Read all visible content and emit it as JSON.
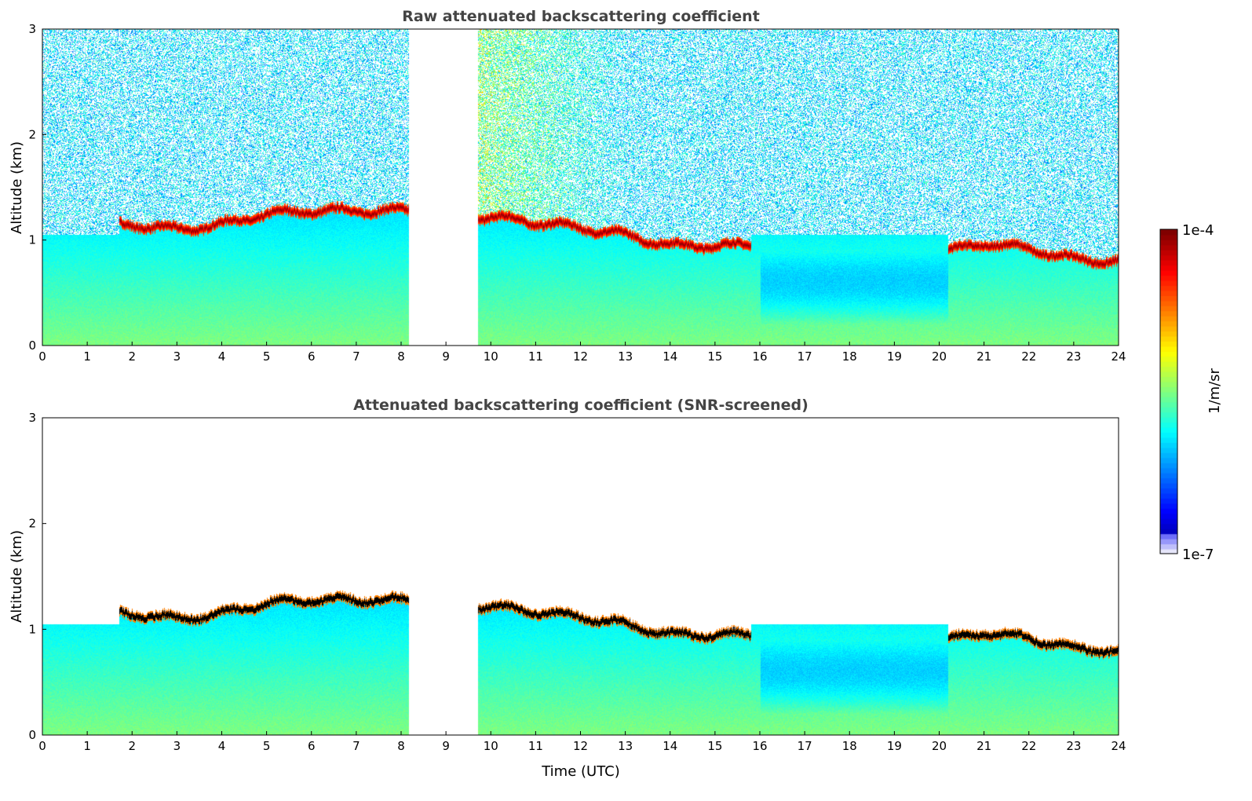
{
  "chart_data": [
    {
      "type": "heatmap",
      "title": "Raw attenuated backscattering coefficient",
      "xlabel": "",
      "ylabel": "Altitude (km)",
      "xlim": [
        0,
        24
      ],
      "ylim": [
        0,
        3
      ],
      "xticks": [
        "0",
        "1",
        "2",
        "3",
        "4",
        "5",
        "6",
        "7",
        "8",
        "9",
        "10",
        "11",
        "12",
        "13",
        "14",
        "15",
        "16",
        "17",
        "18",
        "19",
        "20",
        "21",
        "22",
        "23",
        "24"
      ],
      "yticks": [
        "0",
        "1",
        "2",
        "3"
      ],
      "data_gap_hours": [
        8.17,
        9.7
      ],
      "noise_above_boundary_layer": true
    },
    {
      "type": "heatmap",
      "title": "Attenuated backscattering coefficient (SNR-screened)",
      "xlabel": "Time (UTC)",
      "ylabel": "Altitude (km)",
      "xlim": [
        0,
        24
      ],
      "ylim": [
        0,
        3
      ],
      "xticks": [
        "0",
        "1",
        "2",
        "3",
        "4",
        "5",
        "6",
        "7",
        "8",
        "9",
        "10",
        "11",
        "12",
        "13",
        "14",
        "15",
        "16",
        "17",
        "18",
        "19",
        "20",
        "21",
        "22",
        "23",
        "24"
      ],
      "yticks": [
        "0",
        "1",
        "2",
        "3"
      ],
      "data_gap_hours": [
        8.17,
        9.7
      ],
      "noise_above_boundary_layer": false
    }
  ],
  "cloud_layer_km": {
    "time_utc": [
      1.7,
      2,
      3,
      4,
      5,
      6,
      7,
      8,
      8.17,
      9.7,
      10,
      11,
      12,
      13,
      14,
      15,
      15.8,
      20.2,
      21,
      22,
      23,
      24
    ],
    "altitude": [
      1.15,
      1.15,
      1.1,
      1.15,
      1.25,
      1.28,
      1.28,
      1.28,
      1.28,
      1.22,
      1.22,
      1.17,
      1.12,
      1.05,
      0.95,
      0.95,
      0.95,
      0.9,
      0.97,
      0.92,
      0.82,
      0.8
    ]
  },
  "boundary_layer_top_km": 1.05,
  "colorbar": {
    "label": "1/m/sr",
    "max_label": "1e-4",
    "min_label": "1e-7",
    "log_range": [
      -7,
      -4
    ],
    "colormap": "jet"
  }
}
